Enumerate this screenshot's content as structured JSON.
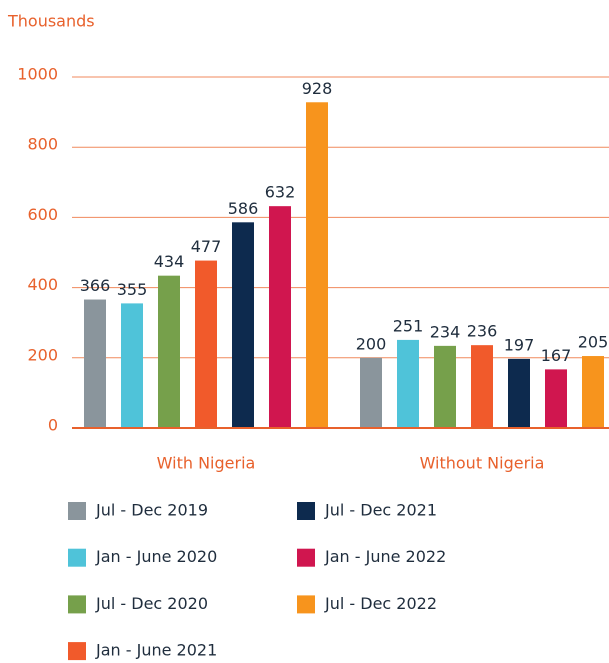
{
  "chart_data": {
    "type": "bar",
    "y_label": "Thousands",
    "categories": [
      "With Nigeria",
      "Without Nigeria"
    ],
    "series": [
      {
        "name": "Jul - Dec 2019",
        "color": "#8a959c",
        "values": [
          366,
          200
        ]
      },
      {
        "name": "Jan - June 2020",
        "color": "#4fc3d9",
        "values": [
          355,
          251
        ]
      },
      {
        "name": "Jul - Dec 2020",
        "color": "#76a04b",
        "values": [
          434,
          234
        ]
      },
      {
        "name": "Jan - June 2021",
        "color": "#f15a2b",
        "values": [
          477,
          236
        ]
      },
      {
        "name": "Jul - Dec 2021",
        "color": "#0d2a4e",
        "values": [
          586,
          197
        ]
      },
      {
        "name": "Jan - June 2022",
        "color": "#d0164f",
        "values": [
          632,
          167
        ]
      },
      {
        "name": "Jul - Dec 2022",
        "color": "#f7941d",
        "values": [
          928,
          205
        ]
      }
    ],
    "ylim": [
      0,
      1000
    ],
    "yticks": [
      0,
      200,
      400,
      600,
      800,
      1000
    ],
    "grid": true
  }
}
